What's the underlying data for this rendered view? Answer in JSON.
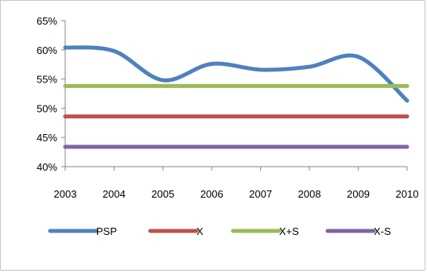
{
  "chart_data": {
    "type": "line",
    "x": [
      "2003",
      "2004",
      "2005",
      "2006",
      "2007",
      "2008",
      "2009",
      "2010"
    ],
    "series": [
      {
        "name": "PSP",
        "color": "#4f81bd",
        "smooth": true,
        "values": [
          60.4,
          59.8,
          54.8,
          57.6,
          56.6,
          57.1,
          58.8,
          51.3
        ]
      },
      {
        "name": "X",
        "color": "#c0504d",
        "values": [
          48.6,
          48.6,
          48.6,
          48.6,
          48.6,
          48.6,
          48.6,
          48.6
        ]
      },
      {
        "name": "X+S",
        "color": "#9bbb59",
        "values": [
          53.8,
          53.8,
          53.8,
          53.8,
          53.8,
          53.8,
          53.8,
          53.8
        ]
      },
      {
        "name": "X-S",
        "color": "#8064a2",
        "values": [
          43.4,
          43.4,
          43.4,
          43.4,
          43.4,
          43.4,
          43.4,
          43.4
        ]
      }
    ],
    "ylim": [
      40,
      65
    ],
    "yticks": [
      "40%",
      "45%",
      "50%",
      "55%",
      "60%",
      "65%"
    ],
    "ytick_values": [
      40,
      45,
      50,
      55,
      60,
      65
    ],
    "title": "",
    "xlabel": "",
    "ylabel": "",
    "grid": false,
    "legend_position": "bottom"
  }
}
